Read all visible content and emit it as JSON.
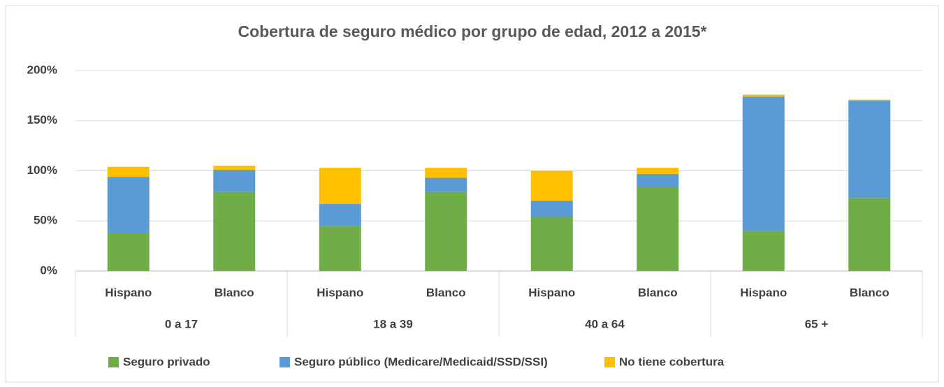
{
  "chart_data": {
    "type": "stacked_bar",
    "title": "Cobertura de seguro médico por grupo de edad, 2012 a 2015*",
    "categories": [
      "Hispano",
      "Blanco",
      "Hispano",
      "Blanco",
      "Hispano",
      "Blanco",
      "Hispano",
      "Blanco"
    ],
    "groups": [
      "0 a 17",
      "18 a 39",
      "40 a 64",
      "65 +"
    ],
    "series": [
      {
        "name": "Seguro privado",
        "color": "#70ad47",
        "values": [
          38,
          79,
          45,
          79,
          54,
          84,
          40,
          73
        ]
      },
      {
        "name": "Seguro público (Medicare/Medicaid/SSD/SSI)",
        "color": "#5b9bd5",
        "values": [
          56,
          22,
          22,
          14,
          16,
          13,
          134,
          97
        ]
      },
      {
        "name": "No tiene cobertura",
        "color": "#ffc000",
        "values": [
          10,
          4,
          36,
          10,
          30,
          6,
          2,
          1
        ]
      }
    ],
    "ylim": [
      0,
      200
    ],
    "yticks": [
      {
        "value": 0,
        "label": "0%"
      },
      {
        "value": 50,
        "label": "50%"
      },
      {
        "value": 100,
        "label": "100%"
      },
      {
        "value": 150,
        "label": "150%"
      },
      {
        "value": 200,
        "label": "200%"
      }
    ],
    "grid": true,
    "legend": "bottom"
  }
}
